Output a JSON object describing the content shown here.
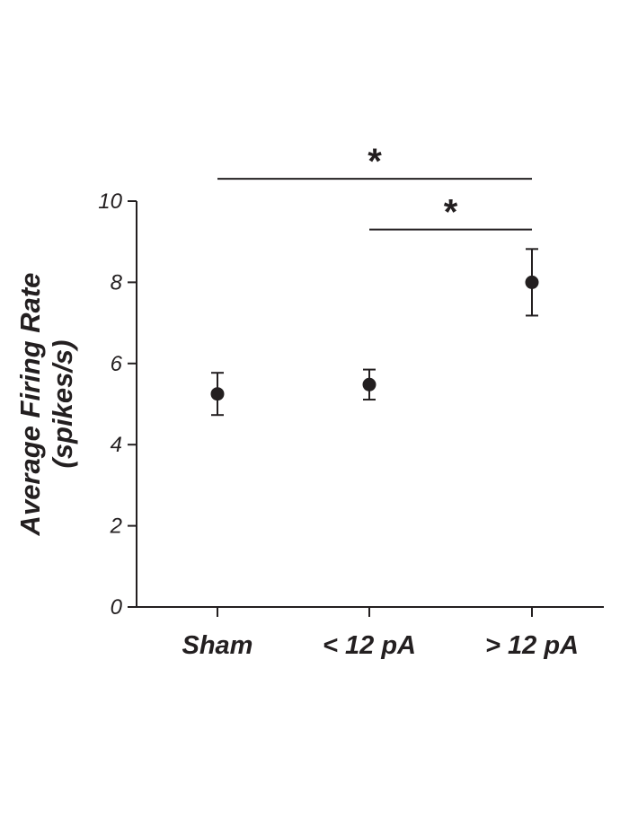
{
  "chart_data": {
    "type": "scatter",
    "title": "",
    "xlabel": "",
    "ylabel_lines": [
      "Average Firing Rate",
      "(spikes/s)"
    ],
    "categories": [
      "Sham",
      "< 12 pA",
      "> 12 pA"
    ],
    "series": [
      {
        "values": [
          5.25,
          5.48,
          8.0
        ],
        "error_low": [
          4.73,
          5.11,
          7.18
        ],
        "error_high": [
          5.77,
          5.85,
          8.82
        ]
      }
    ],
    "ylim": [
      0,
      10
    ],
    "yticks": [
      0,
      2,
      4,
      6,
      8,
      10
    ],
    "ytick_labels": [
      "0",
      "2",
      "4",
      "6",
      "8",
      "10"
    ],
    "grid": false,
    "legend": "none",
    "significance": [
      {
        "from": "Sham",
        "to": "> 12 pA",
        "y": 10.55,
        "label": "*"
      },
      {
        "from": "< 12 pA",
        "to": "> 12 pA",
        "y": 9.3,
        "label": "*"
      }
    ],
    "colors": {
      "marker": "#231f20",
      "axis": "#231f20"
    }
  }
}
